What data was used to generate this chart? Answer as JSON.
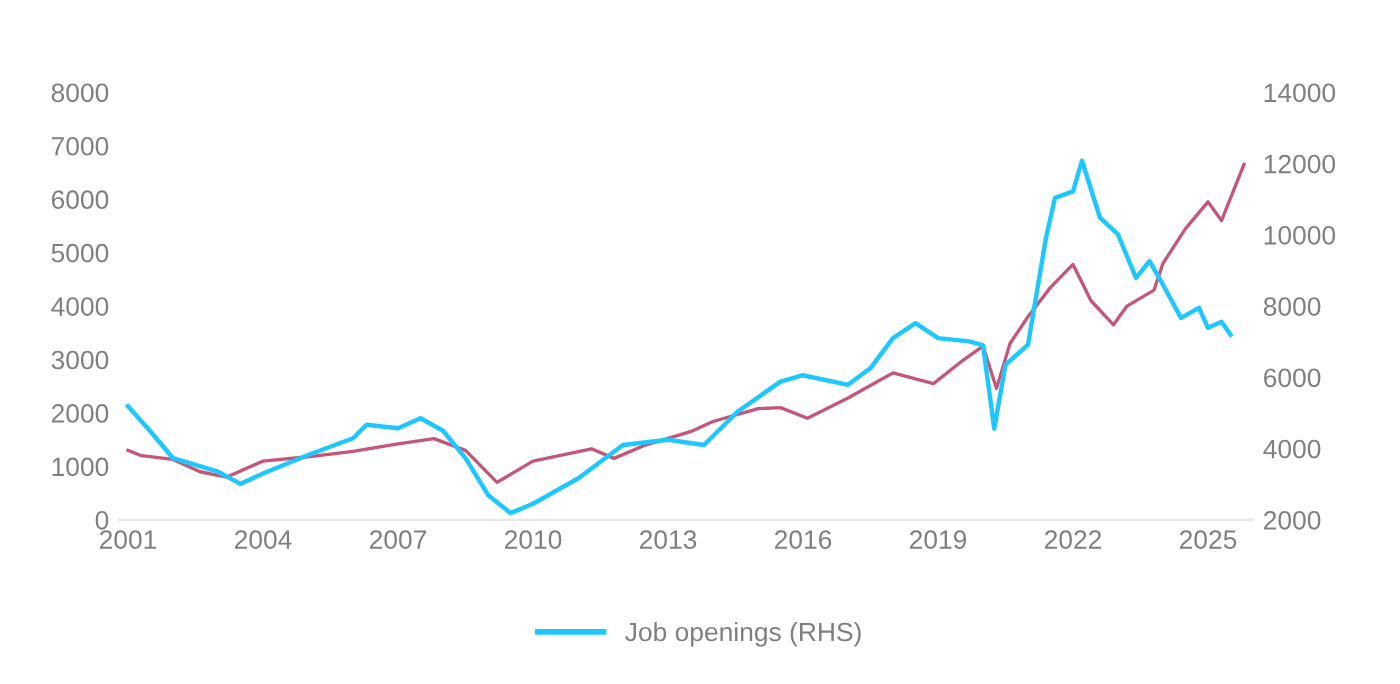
{
  "chart_data": {
    "type": "line",
    "series": [
      {
        "color": "#c4567a",
        "x": [
          2001.0,
          2001.3,
          2002.0,
          2002.6,
          2003.2,
          2004.0,
          2005.0,
          2006.0,
          2007.0,
          2007.8,
          2008.5,
          2009.2,
          2010.0,
          2011.3,
          2011.8,
          2012.5,
          2013.5,
          2014.0,
          2015.0,
          2015.5,
          2016.1,
          2017.0,
          2018.0,
          2018.9,
          2019.5,
          2020.0,
          2020.3,
          2020.6,
          2021.0,
          2021.5,
          2022.0,
          2022.4,
          2022.9,
          2023.2,
          2023.8,
          2024.0,
          2024.5,
          2025.0,
          2025.3,
          2025.8
        ],
        "values": [
          1300,
          1200,
          1130,
          900,
          800,
          1100,
          1180,
          1280,
          1420,
          1520,
          1300,
          700,
          1100,
          1330,
          1150,
          1400,
          1650,
          1840,
          2080,
          2100,
          1900,
          2280,
          2750,
          2550,
          2950,
          3250,
          2460,
          3300,
          3800,
          4350,
          4780,
          4100,
          3650,
          4000,
          4300,
          4800,
          5450,
          5950,
          5600,
          6650
        ]
      },
      {
        "name": "Job openings (RHS)",
        "color": "#1ec8ff",
        "axis": "y2",
        "x": [
          2001.0,
          2001.5,
          2002.0,
          2003.0,
          2003.5,
          2004.0,
          2005.0,
          2006.0,
          2006.3,
          2007.0,
          2007.5,
          2008.0,
          2008.5,
          2009.0,
          2009.5,
          2010.0,
          2011.0,
          2012.0,
          2013.0,
          2013.8,
          2014.55,
          2015.5,
          2016.0,
          2017.0,
          2017.5,
          2018.0,
          2018.5,
          2019.0,
          2019.7,
          2020.0,
          2020.25,
          2020.5,
          2021.0,
          2021.4,
          2021.6,
          2022.0,
          2022.2,
          2022.6,
          2023.0,
          2023.4,
          2023.7,
          2024.0,
          2024.4,
          2024.8,
          2025.0,
          2025.3,
          2025.5
        ],
        "values": [
          5190,
          4480,
          3730,
          3350,
          3010,
          3300,
          3820,
          4290,
          4670,
          4570,
          4850,
          4500,
          3730,
          2700,
          2190,
          2450,
          3160,
          4100,
          4250,
          4100,
          5040,
          5880,
          6060,
          5790,
          6260,
          7100,
          7520,
          7100,
          7010,
          6900,
          4560,
          6350,
          6920,
          9920,
          11040,
          11220,
          12080,
          10480,
          10010,
          8790,
          9260,
          8600,
          7670,
          7950,
          7390,
          7560,
          7200
        ]
      }
    ],
    "xlim": [
      2000.8,
      2026.0
    ],
    "xticks": [
      2001,
      2004,
      2007,
      2010,
      2013,
      2016,
      2019,
      2022,
      2025
    ],
    "ylim": [
      0,
      8000
    ],
    "yticks": [
      0,
      1000,
      2000,
      3000,
      4000,
      5000,
      6000,
      7000,
      8000
    ],
    "y2lim": [
      2000,
      14000
    ],
    "y2ticks": [
      2000,
      4000,
      6000,
      8000,
      10000,
      12000,
      14000
    ],
    "grid": false,
    "legend": "bottom",
    "line_style": "solid",
    "marker": "none"
  }
}
